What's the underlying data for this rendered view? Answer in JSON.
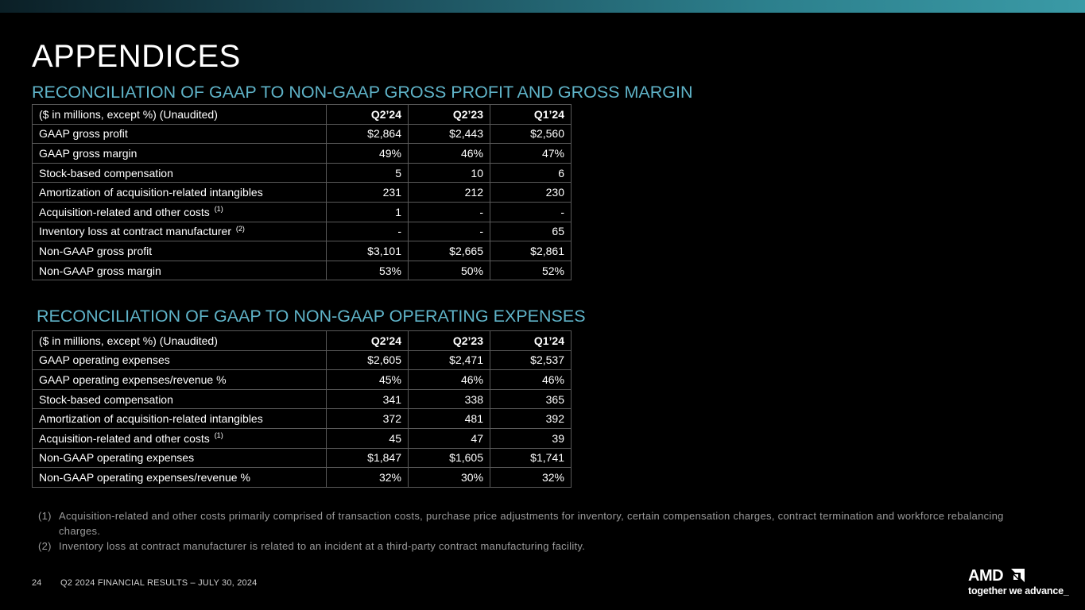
{
  "page_title": "APPENDICES",
  "gross": {
    "title": "RECONCILIATION OF GAAP TO NON-GAAP GROSS PROFIT AND GROSS MARGIN",
    "header": {
      "label": "($ in millions, except %) (Unaudited)",
      "c1": "Q2’24",
      "c2": "Q2’23",
      "c3": "Q1’24"
    },
    "rows": [
      {
        "label": "GAAP gross profit",
        "c1": "$2,864",
        "c2": "$2,443",
        "c3": "$2,560"
      },
      {
        "label": "GAAP gross margin",
        "c1": "49%",
        "c2": "46%",
        "c3": "47%"
      },
      {
        "label": "Stock-based compensation",
        "c1": "5",
        "c2": "10",
        "c3": "6"
      },
      {
        "label": "Amortization of acquisition-related intangibles",
        "c1": "231",
        "c2": "212",
        "c3": "230"
      },
      {
        "label": "Acquisition-related and other costs",
        "fn": "(1)",
        "c1": "1",
        "c2": "-",
        "c3": "-"
      },
      {
        "label": "Inventory loss at contract manufacturer",
        "fn": "(2)",
        "c1": "-",
        "c2": "-",
        "c3": "65"
      },
      {
        "label": "Non-GAAP gross profit",
        "c1": "$3,101",
        "c2": "$2,665",
        "c3": "$2,861"
      },
      {
        "label": "Non-GAAP gross margin",
        "c1": "53%",
        "c2": "50%",
        "c3": "52%"
      }
    ]
  },
  "opex": {
    "title": "RECONCILIATION OF GAAP TO NON-GAAP OPERATING EXPENSES",
    "header": {
      "label": "($ in millions, except %) (Unaudited)",
      "c1": "Q2’24",
      "c2": "Q2’23",
      "c3": "Q1’24"
    },
    "rows": [
      {
        "label": "GAAP operating expenses",
        "c1": "$2,605",
        "c2": "$2,471",
        "c3": "$2,537"
      },
      {
        "label": "GAAP operating expenses/revenue %",
        "c1": "45%",
        "c2": "46%",
        "c3": "46%"
      },
      {
        "label": "Stock-based compensation",
        "c1": "341",
        "c2": "338",
        "c3": "365"
      },
      {
        "label": "Amortization of acquisition-related intangibles",
        "c1": "372",
        "c2": "481",
        "c3": "392"
      },
      {
        "label": "Acquisition-related and other costs",
        "fn": "(1)",
        "c1": "45",
        "c2": "47",
        "c3": "39"
      },
      {
        "label": "Non-GAAP operating expenses",
        "c1": "$1,847",
        "c2": "$1,605",
        "c3": "$1,741"
      },
      {
        "label": "Non-GAAP operating expenses/revenue %",
        "c1": "32%",
        "c2": "30%",
        "c3": "32%"
      }
    ]
  },
  "footnotes": [
    {
      "num": "(1)",
      "text": "Acquisition-related and other costs primarily comprised of transaction costs, purchase price adjustments for inventory, certain compensation charges, contract termination and workforce rebalancing charges."
    },
    {
      "num": "(2)",
      "text": "Inventory loss at contract manufacturer is related to an incident at a third-party contract manufacturing facility."
    }
  ],
  "footer": {
    "page": "24",
    "text": "Q2 2024 FINANCIAL RESULTS – JULY 30, 2024"
  },
  "logo": {
    "word": "AMD",
    "tagline": "together we advance_",
    "icon": "amd-arrow-icon"
  },
  "colors": {
    "accent": "#5fb3c8",
    "background": "#000000",
    "border": "#5a5a5a"
  }
}
